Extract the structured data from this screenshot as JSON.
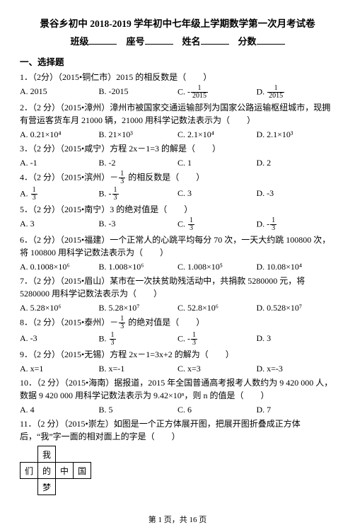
{
  "title": "景谷乡初中 2018-2019 学年初中七年级上学期数学第一次月考试卷",
  "header": {
    "class_label": "班级",
    "seat_label": "座号",
    "name_label": "姓名",
    "score_label": "分数"
  },
  "section1": "一、选择题",
  "q1": {
    "stem": "1．（2分）（2015•铜仁市）2015 的相反数是（　　）",
    "A": "A. 2015",
    "B": "B. -2015",
    "C_prefix": "C. -",
    "C_num": "1",
    "C_den": "2015",
    "D_prefix": "D. ",
    "D_num": "1",
    "D_den": "2015"
  },
  "q2": {
    "stem": "2．（2 分）（2015•漳州）漳州市被国家交通运输部列为国家公路运输枢纽城市，现拥有营运客货车月 21000 辆，21000 用科学记数法表示为（　　）",
    "A": "A. 0.21×10⁴",
    "B": "B. 21×10³",
    "C": "C. 2.1×10⁴",
    "D": "D. 2.1×10³"
  },
  "q3": {
    "stem": "3．（2 分）（2015•咸宁）方程 2x－1=3 的解是（　　）",
    "A": "A. -1",
    "B": "B. -2",
    "C": "C. 1",
    "D": "D. 2"
  },
  "q4": {
    "stem_pre": "4．（2 分）（2015•滨州）－",
    "num": "1",
    "den": "3",
    "stem_post": " 的相反数是（　　）",
    "A_prefix": "A. ",
    "A_num": "1",
    "A_den": "3",
    "B_prefix": "B. -",
    "B_num": "1",
    "B_den": "3",
    "C": "C. 3",
    "D": "D. -3"
  },
  "q5": {
    "stem": "5．（2 分）（2015•南宁）3 的绝对值是（　　）",
    "A": "A. 3",
    "B": "B. -3",
    "C_prefix": "C. ",
    "C_num": "1",
    "C_den": "3",
    "D_prefix": "D. -",
    "D_num": "1",
    "D_den": "3"
  },
  "q6": {
    "stem": "6．（2 分）（2015•福建）一个正常人的心跳平均每分 70 次，一天大约跳 100800 次，将 100800 用科学记数法表示为（　　）",
    "A": "A. 0.1008×10⁶",
    "B": "B. 1.008×10⁶",
    "C": "C. 1.008×10⁵",
    "D": "D. 10.08×10⁴"
  },
  "q7": {
    "stem": "7．（2 分）（2015•眉山）某市在一次扶贫助残活动中，共捐款 5280000 元，将 5280000 用科学记数法表示为（　　）",
    "A": "A. 5.28×10⁶",
    "B": "B. 5.28×10⁷",
    "C": "C. 52.8×10⁶",
    "D": "D. 0.528×10⁷"
  },
  "q8": {
    "stem_pre": "8．（2 分）（2015•泰州）－",
    "num": "1",
    "den": "3",
    "stem_post": " 的绝对值是（　　）",
    "A": "A. -3",
    "B": "B. ",
    "B_num": "1",
    "B_den": "3",
    "C_prefix": "C. -",
    "C_num": "1",
    "C_den": "3",
    "D": "D. 3"
  },
  "q9": {
    "stem": "9．（2 分）（2015•无锡）方程 2x－1=3x+2 的解为（　　）",
    "A": "A. x=1",
    "B": "B. x=-1",
    "C": "C. x=3",
    "D": "D. x=-3"
  },
  "q10": {
    "stem": "10．（2 分）（2015•海南）据报道，2015 年全国普通高考报考人数约为 9 420 000 人，数据 9 420 000 用科学记数法表示为 9.42×10ⁿ，则 n 的值是（　　）",
    "A": "A. 4",
    "B": "B. 5",
    "C": "C. 6",
    "D": "D. 7"
  },
  "q11": {
    "stem": "11．（2 分）（2015•崇左）如图是一个正方体展开图，把展开图折叠成正方体后，“我”字一面的相对面上的字是（　　）",
    "chars": {
      "c1": "我",
      "c2": "们",
      "c3": "的",
      "c4": "中",
      "c5": "国",
      "c6": "梦"
    }
  },
  "footer": "第 1 页，共 16 页"
}
